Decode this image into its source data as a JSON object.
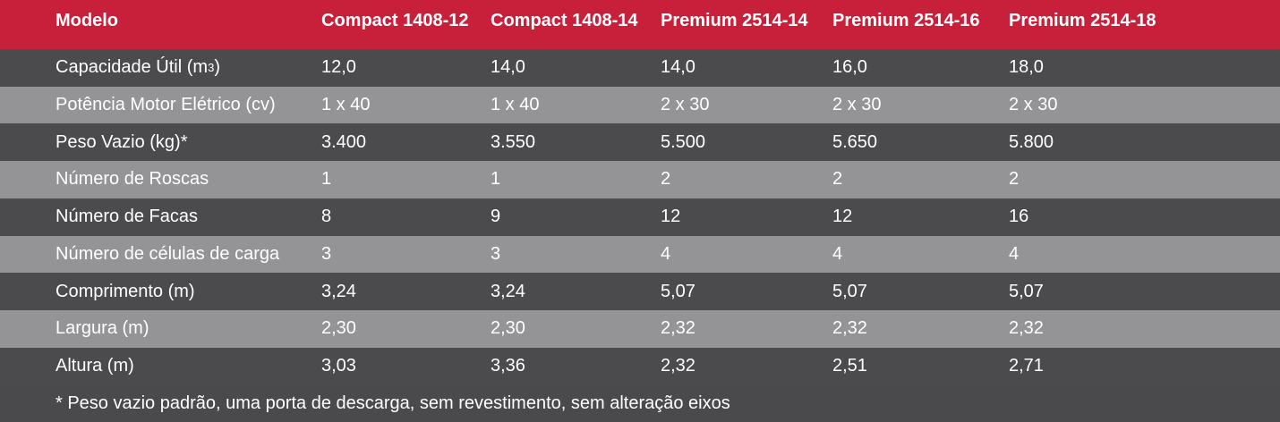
{
  "table": {
    "headers": [
      "Modelo",
      "Compact 1408-12",
      "Compact 1408-14",
      "Premium 2514-14",
      "Premium 2514-16",
      "Premium 2514-18"
    ],
    "rows": [
      {
        "label": "Capacidade Útil (m",
        "label_sup": "3",
        "label_end": ")",
        "values": [
          "12,0",
          "14,0",
          "14,0",
          "16,0",
          "18,0"
        ]
      },
      {
        "label": "Potência Motor Elétrico (cv)",
        "values": [
          "1 x 40",
          "1 x 40",
          "2 x 30",
          "2 x 30",
          "2 x 30"
        ]
      },
      {
        "label": "Peso Vazio (kg)*",
        "values": [
          "3.400",
          "3.550",
          "5.500",
          "5.650",
          "5.800"
        ]
      },
      {
        "label": "Número de Roscas",
        "values": [
          "1",
          "1",
          "2",
          "2",
          "2"
        ]
      },
      {
        "label": "Número de Facas",
        "values": [
          "8",
          "9",
          "12",
          "12",
          "16"
        ]
      },
      {
        "label": "Número de células de carga",
        "values": [
          "3",
          "3",
          "4",
          "4",
          "4"
        ]
      },
      {
        "label": "Comprimento (m)",
        "values": [
          "3,24",
          "3,24",
          "5,07",
          "5,07",
          "5,07"
        ]
      },
      {
        "label": "Largura (m)",
        "values": [
          "2,30",
          "2,30",
          "2,32",
          "2,32",
          "2,32"
        ]
      },
      {
        "label": "Altura (m)",
        "values": [
          "3,03",
          "3,36",
          "2,32",
          "2,51",
          "2,71"
        ]
      }
    ],
    "footnote": "* Peso vazio padrão, uma porta de descarga, sem revestimento, sem alteração eixos"
  },
  "colors": {
    "header_bg": "#c8203a",
    "row_dark": "#4b4b4d",
    "row_light": "#949496",
    "text": "#ffffff"
  }
}
